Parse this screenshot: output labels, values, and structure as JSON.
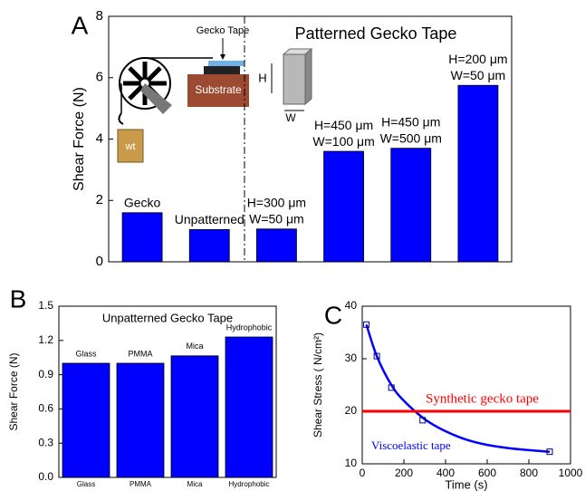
{
  "chart_data": [
    {
      "type": "bar",
      "panel_label": "A",
      "title": "Patterned Gecko Tape",
      "ylabel": "Shear Force (N)",
      "categories": [
        [
          "Gecko"
        ],
        [
          "Unpatterned"
        ],
        [
          "H=300 μm",
          "W=50 μm"
        ],
        [
          "H=450 μm",
          "W=100 μm"
        ],
        [
          "H=450 μm",
          "W=500 μm"
        ],
        [
          "H=200 μm",
          "W=50 μm"
        ]
      ],
      "values": [
        1.6,
        1.05,
        1.07,
        3.6,
        3.7,
        5.75
      ],
      "color": "#0000ff",
      "ylim": [
        0,
        8
      ],
      "yticks": [
        0,
        2,
        4,
        6,
        8
      ],
      "annotations": [
        "Gecko Tape",
        "Substrate",
        "wt",
        "H",
        "W"
      ]
    },
    {
      "type": "bar",
      "panel_label": "B",
      "title": "Unpatterned Gecko Tape",
      "ylabel": "Shear Force (N)",
      "categories": [
        "Glass",
        "PMMA",
        "Mica",
        "Hydrophobic"
      ],
      "values": [
        1.0,
        1.0,
        1.065,
        1.23
      ],
      "color": "#0000ff",
      "ylim": [
        0,
        1.5
      ],
      "yticks": [
        {
          "value": 0,
          "label": "0.0"
        },
        0.3,
        0.6,
        0.9,
        1.2,
        1.5
      ]
    },
    {
      "type": "line",
      "panel_label": "C",
      "xlabel": "Time (s)",
      "ylabel": "Shear Stress ( N/cm²)",
      "xlim": [
        0,
        1000
      ],
      "xticks": [
        0,
        200,
        400,
        600,
        800,
        1000
      ],
      "ylim": [
        10,
        40
      ],
      "yticks": [
        10,
        20,
        30,
        40
      ],
      "series": [
        {
          "name": "Viscoelastic tape",
          "color": "#0000ff",
          "x": [
            20,
            70,
            140,
            200,
            300,
            400,
            500,
            600,
            700,
            800,
            900
          ],
          "values": [
            36.5,
            30.5,
            25,
            22,
            18.5,
            16.2,
            14.6,
            13.6,
            13,
            12.6,
            12.3
          ]
        },
        {
          "color": "#000080",
          "marker": "square",
          "x": [
            20,
            70,
            140,
            290,
            900
          ],
          "values": [
            36.5,
            30.5,
            24.5,
            18.3,
            12.3
          ]
        },
        {
          "name": "Synthetic gecko tape",
          "color": "#ff0000",
          "x": [
            0,
            1000
          ],
          "values": [
            20,
            20
          ]
        }
      ]
    }
  ]
}
